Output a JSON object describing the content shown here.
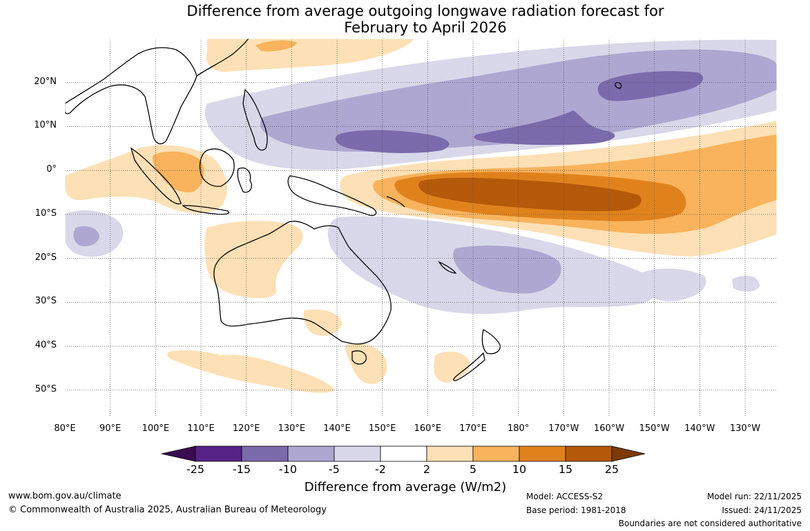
{
  "title_line1": "Difference from average outgoing longwave radiation forecast for",
  "title_line2": "February to April 2026",
  "map": {
    "lat_labels": [
      "20°N",
      "10°N",
      "0°",
      "10°S",
      "20°S",
      "30°S",
      "40°S",
      "50°S"
    ],
    "lat_values": [
      20,
      10,
      0,
      -10,
      -20,
      -30,
      -40,
      -50
    ],
    "lon_labels": [
      "80°E",
      "90°E",
      "100°E",
      "110°E",
      "120°E",
      "130°E",
      "140°E",
      "150°E",
      "160°E",
      "170°E",
      "180°",
      "170°W",
      "160°W",
      "150°W",
      "140°W",
      "130°W"
    ],
    "lon_values": [
      80,
      90,
      100,
      110,
      120,
      130,
      140,
      150,
      160,
      170,
      180,
      190,
      200,
      210,
      220,
      230
    ],
    "lon_range": [
      80,
      237
    ],
    "lat_range": [
      -56,
      30
    ]
  },
  "colorbar": {
    "ticks": [
      "-25",
      "-15",
      "-10",
      "-5",
      "-2",
      "2",
      "5",
      "10",
      "15",
      "25"
    ],
    "colors": [
      "#572486",
      "#7b6aac",
      "#aea7d1",
      "#d8d8ea",
      "#ffffff",
      "#fde0b5",
      "#f8b35c",
      "#e0821c",
      "#b5590a"
    ],
    "under_color": "#3b0a52",
    "over_color": "#7d3a06",
    "title": "Difference from average (W/m2)"
  },
  "footer": {
    "website": "www.bom.gov.au/climate",
    "copyright": "© Commonwealth of Australia 2025, Australian Bureau of Meteorology",
    "model": "Model: ACCESS-S2",
    "base_period": "Base period: 1981-2018",
    "model_run": "Model run: 22/11/2025",
    "issued": "Issued: 24/11/2025",
    "disclaimer": "Boundaries are not considered authoritative"
  }
}
